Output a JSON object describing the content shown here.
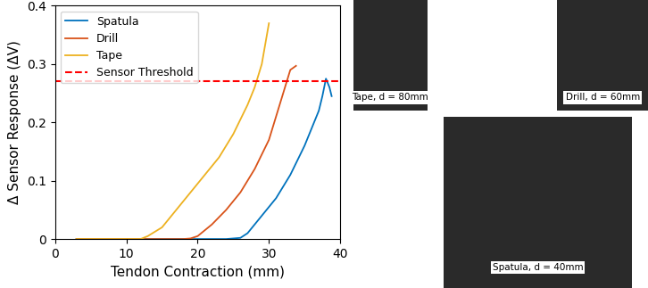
{
  "chart_data": {
    "type": "line",
    "x_label": "Tendon Contraction (mm)",
    "y_label": "Δ Sensor Response (ΔV)",
    "xlim": [
      0,
      40
    ],
    "xticks": [
      0,
      10,
      20,
      30,
      40
    ],
    "ylim": [
      0,
      0.4
    ],
    "yticks": [
      0,
      0.1,
      0.2,
      0.3,
      0.4
    ],
    "legend": "upper left",
    "series": [
      {
        "name": "Spatula",
        "color": "#0072BD",
        "type": "line",
        "x": [
          3,
          6,
          9,
          12,
          15,
          18,
          21,
          24,
          26,
          27,
          29,
          31,
          33,
          35,
          36,
          37,
          37.5,
          38,
          38.5,
          38.8
        ],
        "values": [
          0,
          0,
          0,
          0,
          0,
          0,
          0,
          0,
          0.002,
          0.01,
          0.04,
          0.07,
          0.11,
          0.16,
          0.19,
          0.22,
          0.245,
          0.275,
          0.26,
          0.245
        ]
      },
      {
        "name": "Drill",
        "color": "#D95319",
        "type": "line",
        "x": [
          3,
          6,
          9,
          12,
          15,
          18,
          19,
          20,
          22,
          24,
          26,
          28,
          30,
          31,
          32,
          33,
          33.8
        ],
        "values": [
          0,
          0,
          0,
          0,
          0,
          0,
          0.001,
          0.005,
          0.025,
          0.05,
          0.08,
          0.12,
          0.17,
          0.21,
          0.25,
          0.29,
          0.297
        ]
      },
      {
        "name": "Tape",
        "color": "#EDB120",
        "type": "line",
        "x": [
          3,
          6,
          9,
          12,
          13,
          15,
          17,
          19,
          21,
          23,
          25,
          27,
          28,
          29,
          30
        ],
        "values": [
          0,
          0,
          0,
          0,
          0.005,
          0.02,
          0.05,
          0.08,
          0.11,
          0.14,
          0.18,
          0.23,
          0.26,
          0.3,
          0.37
        ]
      },
      {
        "name": "Sensor Threshold",
        "color": "#FF0000",
        "type": "hline",
        "line_style": "dashed",
        "values": [
          0.27
        ]
      }
    ],
    "annotations": [
      "Tape, d = 80mm",
      "Drill, d = 60mm",
      "Spatula, d = 40mm"
    ]
  }
}
